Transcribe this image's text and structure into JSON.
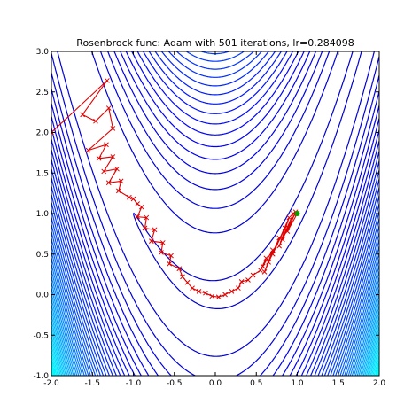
{
  "chart_data": {
    "type": "line",
    "title": "Rosenbrock func: Adam with 501 iterations, lr=0.284098",
    "xlabel": "",
    "ylabel": "",
    "xlim": [
      -2.0,
      2.0
    ],
    "ylim": [
      -1.0,
      3.0
    ],
    "x_ticks": [
      "-2.0",
      "-1.5",
      "-1.0",
      "-0.5",
      "0.0",
      "0.5",
      "1.0",
      "1.5",
      "2.0"
    ],
    "y_ticks": [
      "-1.0",
      "-0.5",
      "0.0",
      "0.5",
      "1.0",
      "1.5",
      "2.0",
      "2.5",
      "3.0"
    ],
    "grid": false,
    "background": {
      "kind": "filled contour + contour lines",
      "function": "Rosenbrock (1-x)^2 + 100(y-x^2)^2",
      "colormap": "jet"
    },
    "series": [
      {
        "values": [
          [
            -2.0,
            2.0
          ],
          [
            -1.32,
            2.64
          ],
          [
            -1.62,
            2.22
          ],
          [
            -1.46,
            2.14
          ],
          [
            -1.3,
            2.3
          ],
          [
            -1.25,
            2.05
          ],
          [
            -1.55,
            1.78
          ],
          [
            -1.33,
            1.85
          ],
          [
            -1.42,
            1.68
          ],
          [
            -1.25,
            1.7
          ],
          [
            -1.36,
            1.52
          ],
          [
            -1.2,
            1.55
          ],
          [
            -1.3,
            1.38
          ],
          [
            -1.15,
            1.4
          ],
          [
            -1.18,
            1.28
          ],
          [
            -1.05,
            1.2
          ],
          [
            -1.0,
            1.18
          ],
          [
            -0.95,
            1.12
          ],
          [
            -0.9,
            1.08
          ],
          [
            -0.95,
            0.96
          ],
          [
            -0.84,
            0.95
          ],
          [
            -0.86,
            0.82
          ],
          [
            -0.74,
            0.8
          ],
          [
            -0.78,
            0.66
          ],
          [
            -0.64,
            0.64
          ],
          [
            -0.66,
            0.52
          ],
          [
            -0.54,
            0.48
          ],
          [
            -0.56,
            0.38
          ],
          [
            -0.44,
            0.32
          ],
          [
            -0.4,
            0.22
          ],
          [
            -0.34,
            0.15
          ],
          [
            -0.28,
            0.08
          ],
          [
            -0.2,
            0.04
          ],
          [
            -0.12,
            0.02
          ],
          [
            -0.04,
            -0.02
          ],
          [
            0.04,
            -0.03
          ],
          [
            0.12,
            0.0
          ],
          [
            0.2,
            0.04
          ],
          [
            0.28,
            0.08
          ],
          [
            0.32,
            0.16
          ],
          [
            0.4,
            0.18
          ],
          [
            0.46,
            0.24
          ],
          [
            0.55,
            0.3
          ],
          [
            0.62,
            0.45
          ],
          [
            0.58,
            0.35
          ],
          [
            0.7,
            0.55
          ],
          [
            0.6,
            0.28
          ],
          [
            0.78,
            0.7
          ],
          [
            0.65,
            0.4
          ],
          [
            0.85,
            0.82
          ],
          [
            0.7,
            0.5
          ],
          [
            0.9,
            0.95
          ],
          [
            0.78,
            0.6
          ],
          [
            0.95,
            1.0
          ],
          [
            0.82,
            0.68
          ],
          [
            0.98,
            1.02
          ],
          [
            0.88,
            0.78
          ],
          [
            1.0,
            1.0
          ]
        ],
        "marker": "x",
        "color": "#e00000"
      }
    ],
    "start": [
      -2.0,
      2.0
    ],
    "end": [
      1.0,
      1.0
    ],
    "end_marker_color": "#00a000"
  }
}
